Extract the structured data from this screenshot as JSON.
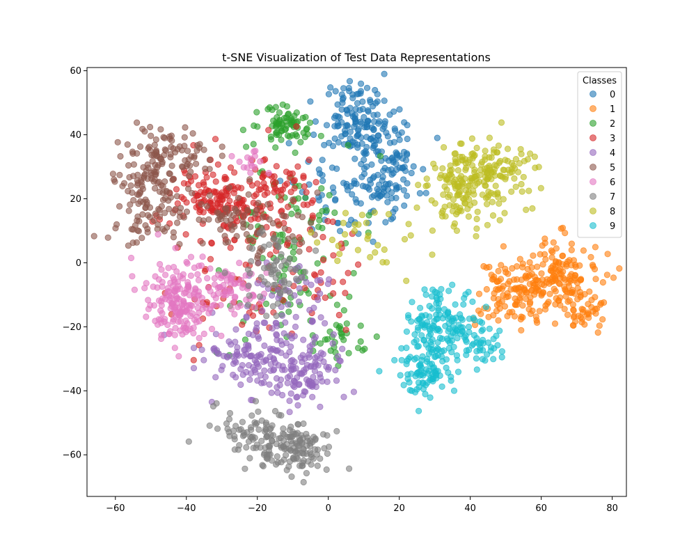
{
  "chart_data": {
    "type": "scatter",
    "title": "t-SNE Visualization of Test Data Representations",
    "xlabel": "",
    "ylabel": "",
    "xlim": [
      -68,
      84
    ],
    "ylim": [
      -73,
      61
    ],
    "xticks": [
      -60,
      -40,
      -20,
      0,
      20,
      40,
      60,
      80
    ],
    "yticks": [
      -60,
      -40,
      -20,
      0,
      20,
      40,
      60
    ],
    "xtick_labels": [
      "−60",
      "−40",
      "−20",
      "0",
      "20",
      "40",
      "60",
      "80"
    ],
    "ytick_labels": [
      "−60",
      "−40",
      "−20",
      "0",
      "20",
      "40",
      "60"
    ],
    "grid": false,
    "legend": {
      "title": "Classes",
      "placement": "top-right"
    },
    "series": [
      {
        "name": "0",
        "color": "#1f77b4",
        "clusters": [
          {
            "cx": 8,
            "cy": 45,
            "sx": 5,
            "sy": 6,
            "n": 120
          },
          {
            "cx": 16,
            "cy": 30,
            "sx": 5,
            "sy": 7,
            "n": 110
          },
          {
            "cx": 4,
            "cy": 22,
            "sx": 7,
            "sy": 8,
            "n": 60
          }
        ]
      },
      {
        "name": "1",
        "color": "#ff7f0e",
        "clusters": [
          {
            "cx": 65,
            "cy": -5,
            "sx": 6,
            "sy": 6,
            "n": 150
          },
          {
            "cx": 52,
            "cy": -9,
            "sx": 5,
            "sy": 5,
            "n": 110
          },
          {
            "cx": 72,
            "cy": -16,
            "sx": 3,
            "sy": 3,
            "n": 30
          }
        ]
      },
      {
        "name": "2",
        "color": "#2ca02c",
        "clusters": [
          {
            "cx": -12,
            "cy": 43,
            "sx": 4,
            "sy": 3,
            "n": 70
          },
          {
            "cx": -10,
            "cy": 5,
            "sx": 10,
            "sy": 14,
            "n": 110
          },
          {
            "cx": 2,
            "cy": -25,
            "sx": 4,
            "sy": 4,
            "n": 30
          }
        ]
      },
      {
        "name": "3",
        "color": "#d62728",
        "clusters": [
          {
            "cx": -30,
            "cy": 20,
            "sx": 8,
            "sy": 6,
            "n": 170
          },
          {
            "cx": -12,
            "cy": 20,
            "sx": 6,
            "sy": 8,
            "n": 60
          },
          {
            "cx": -22,
            "cy": -5,
            "sx": 12,
            "sy": 10,
            "n": 60
          },
          {
            "cx": 0,
            "cy": -8,
            "sx": 4,
            "sy": 6,
            "n": 20
          }
        ]
      },
      {
        "name": "4",
        "color": "#9467bd",
        "clusters": [
          {
            "cx": -18,
            "cy": -30,
            "sx": 9,
            "sy": 7,
            "n": 150
          },
          {
            "cx": -6,
            "cy": -33,
            "sx": 5,
            "sy": 6,
            "n": 80
          },
          {
            "cx": -10,
            "cy": -10,
            "sx": 6,
            "sy": 6,
            "n": 40
          }
        ]
      },
      {
        "name": "5",
        "color": "#8c564b",
        "clusters": [
          {
            "cx": -50,
            "cy": 20,
            "sx": 6,
            "sy": 9,
            "n": 130
          },
          {
            "cx": -43,
            "cy": 34,
            "sx": 7,
            "sy": 3,
            "n": 70
          },
          {
            "cx": -25,
            "cy": 12,
            "sx": 9,
            "sy": 6,
            "n": 80
          }
        ]
      },
      {
        "name": "6",
        "color": "#e377c2",
        "clusters": [
          {
            "cx": -42,
            "cy": -12,
            "sx": 5,
            "sy": 6,
            "n": 180
          },
          {
            "cx": -27,
            "cy": -8,
            "sx": 4,
            "sy": 4,
            "n": 60
          },
          {
            "cx": -22,
            "cy": 32,
            "sx": 2,
            "sy": 2,
            "n": 15
          }
        ]
      },
      {
        "name": "7",
        "color": "#7f7f7f",
        "clusters": [
          {
            "cx": -10,
            "cy": -58,
            "sx": 6,
            "sy": 4,
            "n": 140
          },
          {
            "cx": -22,
            "cy": -52,
            "sx": 5,
            "sy": 4,
            "n": 50
          },
          {
            "cx": -14,
            "cy": -5,
            "sx": 5,
            "sy": 6,
            "n": 60
          }
        ]
      },
      {
        "name": "8",
        "color": "#bcbd22",
        "clusters": [
          {
            "cx": 44,
            "cy": 27,
            "sx": 7,
            "sy": 5,
            "n": 180
          },
          {
            "cx": 36,
            "cy": 20,
            "sx": 3,
            "sy": 6,
            "n": 50
          },
          {
            "cx": 10,
            "cy": 8,
            "sx": 8,
            "sy": 6,
            "n": 30
          }
        ]
      },
      {
        "name": "9",
        "color": "#17becf",
        "clusters": [
          {
            "cx": 32,
            "cy": -20,
            "sx": 5,
            "sy": 6,
            "n": 140
          },
          {
            "cx": 28,
            "cy": -34,
            "sx": 4,
            "sy": 4,
            "n": 80
          },
          {
            "cx": 42,
            "cy": -25,
            "sx": 3,
            "sy": 3,
            "n": 40
          }
        ]
      }
    ]
  }
}
